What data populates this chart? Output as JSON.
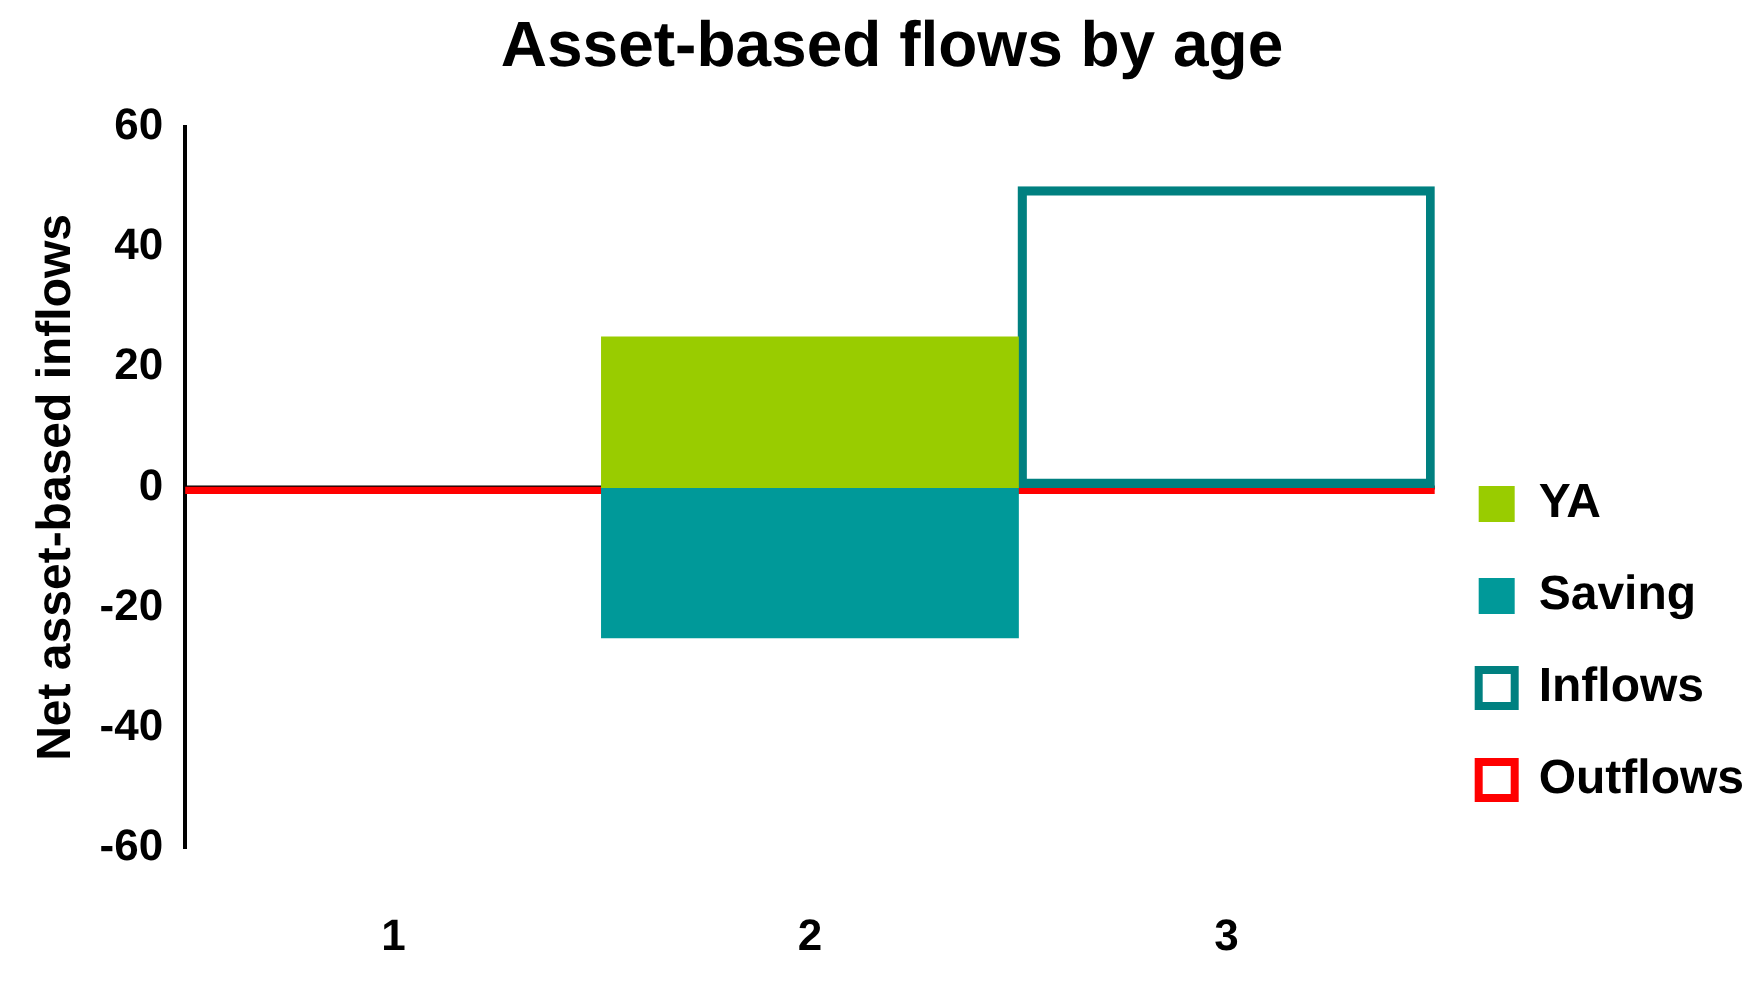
{
  "chart_data": {
    "type": "bar",
    "title": "Asset-based flows by age",
    "ylabel": "Net asset-based inflows",
    "categories": [
      "1",
      "2",
      "3"
    ],
    "stacked": true,
    "ylim": [
      -60,
      60
    ],
    "yticks": [
      -60,
      -40,
      -20,
      0,
      20,
      40,
      60
    ],
    "grid": false,
    "ref_lines": [
      {
        "axis": "y",
        "value": 0,
        "color": "#000000"
      }
    ],
    "legend": "bottom right",
    "series": [
      {
        "name": "YA",
        "color": "#99cc00",
        "values": [
          null,
          25,
          null
        ]
      },
      {
        "name": "Saving",
        "color": "#009999",
        "values": [
          null,
          -25,
          null
        ]
      },
      {
        "name": "Inflows",
        "color": "#008080",
        "values": [
          null,
          null,
          50
        ]
      },
      {
        "name": "Outflows",
        "color": "#ff0000",
        "values": [
          -1,
          null,
          -1
        ]
      }
    ]
  }
}
